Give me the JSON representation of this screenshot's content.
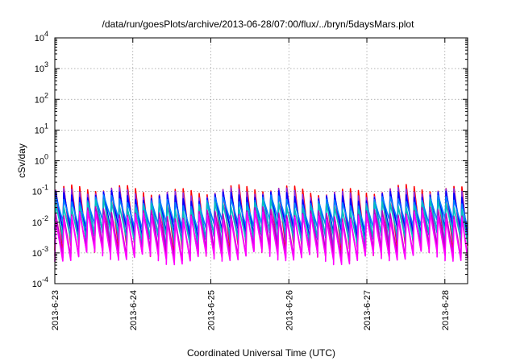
{
  "chart_data": {
    "type": "line",
    "title": "/data/run/goesPlots/archive/2013-06-28/07:00/flux/../bryn/5daysMars.plot",
    "xlabel": "Coordinated Universal Time (UTC)",
    "ylabel": "cSv/day",
    "yscale": "log",
    "ylim": [
      0.0001,
      10000
    ],
    "xlim": [
      "2013-06-23T00:00",
      "2013-06-28T07:00"
    ],
    "x_ticks": [
      "2013-6-23",
      "2013-6-24",
      "2013-6-25",
      "2013-6-26",
      "2013-6-27",
      "2013-6-28"
    ],
    "y_ticks": [
      {
        "base": "10",
        "exp": "-4"
      },
      {
        "base": "10",
        "exp": "-3"
      },
      {
        "base": "10",
        "exp": "-2"
      },
      {
        "base": "10",
        "exp": "-1"
      },
      {
        "base": "10",
        "exp": "0"
      },
      {
        "base": "10",
        "exp": "1"
      },
      {
        "base": "10",
        "exp": "2"
      },
      {
        "base": "10",
        "exp": "3"
      },
      {
        "base": "10",
        "exp": "4"
      }
    ],
    "grid": true,
    "pattern": {
      "description": "sawtooth dose-rate traces, one spike per orbit",
      "period_hours": 2.45,
      "start": "2013-06-23T00:00",
      "end": "2013-06-28T07:00"
    },
    "series": [
      {
        "color": "#ff0000",
        "peak": 0.11,
        "trough": 0.0012
      },
      {
        "color": "#8a2be2",
        "peak": 0.09,
        "trough": 0.0015
      },
      {
        "color": "#0000ff",
        "peak": 0.07,
        "trough": 0.004
      },
      {
        "color": "#0080ff",
        "peak": 0.05,
        "trough": 0.008
      },
      {
        "color": "#00c0c0",
        "peak": 0.035,
        "trough": 0.003
      },
      {
        "color": "#c000c0",
        "peak": 0.02,
        "trough": 0.0009
      },
      {
        "color": "#ff00ff",
        "peak": 0.015,
        "trough": 0.0007
      }
    ]
  }
}
